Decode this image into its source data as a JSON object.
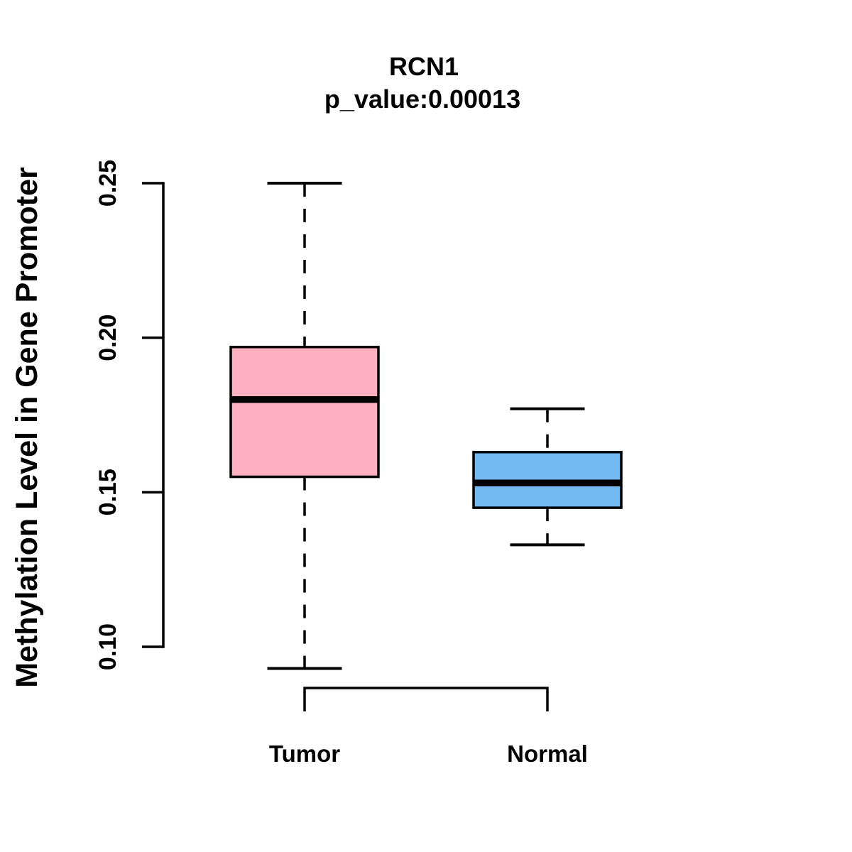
{
  "chart_data": {
    "type": "boxplot",
    "title": "RCN1",
    "subtitle": "p_value:0.00013",
    "ylabel": "Methylation Level in Gene Promoter",
    "xlabel": "",
    "ylim": [
      0.1,
      0.25
    ],
    "yticks": [
      0.1,
      0.15,
      0.2,
      0.25
    ],
    "ytick_labels": [
      "0.10",
      "0.15",
      "0.20",
      "0.25"
    ],
    "grid": false,
    "legend": null,
    "whisker_style": "dashed",
    "groups": [
      {
        "label": "Tumor",
        "color": "#FFB1C1",
        "lower_whisker": 0.093,
        "q1": 0.155,
        "median": 0.18,
        "q3": 0.197,
        "upper_whisker": 0.25
      },
      {
        "label": "Normal",
        "color": "#74B9F0",
        "lower_whisker": 0.133,
        "q1": 0.145,
        "median": 0.153,
        "q3": 0.163,
        "upper_whisker": 0.177
      }
    ],
    "colors": {
      "line": "#000000",
      "background": "#FFFFFF",
      "text": "#000000"
    }
  }
}
